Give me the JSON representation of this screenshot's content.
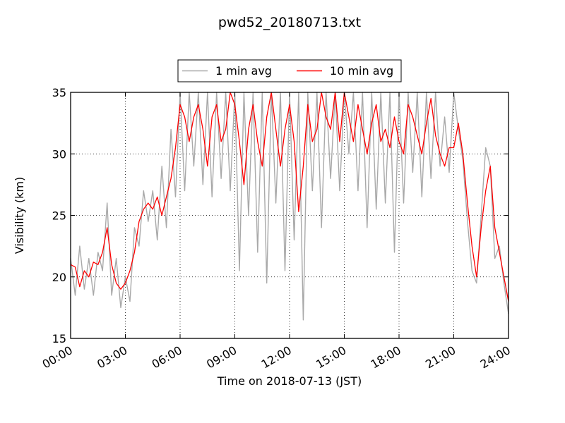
{
  "chart_data": {
    "type": "line",
    "title": "pwd52_20180713.txt",
    "xlabel": "Time on 2018-07-13 (JST)",
    "ylabel": "Visibility (km)",
    "xlim": [
      0,
      24
    ],
    "ylim": [
      15,
      35
    ],
    "x_ticks": [
      0,
      3,
      6,
      9,
      12,
      15,
      18,
      21,
      24
    ],
    "x_tick_labels": [
      "00:00",
      "03:00",
      "06:00",
      "09:00",
      "12:00",
      "15:00",
      "18:00",
      "21:00",
      "24:00"
    ],
    "y_ticks": [
      15,
      20,
      25,
      30,
      35
    ],
    "y_tick_labels": [
      "15",
      "20",
      "25",
      "30",
      "35"
    ],
    "grid": true,
    "legend_position": "top-center",
    "series": [
      {
        "name": "1 min avg",
        "color": "#a9a9a9",
        "x": [
          0,
          0.25,
          0.5,
          0.75,
          1,
          1.25,
          1.5,
          1.75,
          2,
          2.25,
          2.5,
          2.75,
          3,
          3.25,
          3.5,
          3.75,
          4,
          4.25,
          4.5,
          4.75,
          5,
          5.25,
          5.5,
          5.75,
          6,
          6.25,
          6.5,
          6.75,
          7,
          7.25,
          7.5,
          7.75,
          8,
          8.25,
          8.5,
          8.75,
          9,
          9.25,
          9.5,
          9.75,
          10,
          10.25,
          10.5,
          10.75,
          11,
          11.25,
          11.5,
          11.75,
          12,
          12.25,
          12.5,
          12.75,
          13,
          13.25,
          13.5,
          13.75,
          14,
          14.25,
          14.5,
          14.75,
          15,
          15.25,
          15.5,
          15.75,
          16,
          16.25,
          16.5,
          16.75,
          17,
          17.25,
          17.5,
          17.75,
          18,
          18.25,
          18.5,
          18.75,
          19,
          19.25,
          19.5,
          19.75,
          20,
          20.25,
          20.5,
          20.75,
          21,
          21.25,
          21.5,
          21.75,
          22,
          22.25,
          22.5,
          22.75,
          23,
          23.25,
          23.5,
          23.75,
          24
        ],
        "y": [
          21.5,
          18.5,
          22.5,
          19,
          21.5,
          18.5,
          22,
          20.5,
          26,
          18.5,
          21.5,
          17.5,
          20,
          18,
          24,
          22.5,
          27,
          24.5,
          27,
          23,
          29,
          24,
          32,
          26.5,
          35,
          27,
          35,
          29,
          35,
          27.5,
          35,
          26.5,
          35,
          28,
          35,
          27,
          35,
          20.5,
          35,
          25,
          35,
          22,
          35,
          19.5,
          35,
          26,
          35,
          20.5,
          35,
          23,
          35,
          16.5,
          35,
          27,
          35,
          24,
          35,
          28,
          35,
          27,
          35,
          30,
          35,
          27,
          35,
          24,
          35,
          25.5,
          35,
          26,
          35,
          22,
          35,
          26,
          35,
          28.5,
          35,
          26.5,
          35,
          28,
          35,
          29,
          33,
          28.5,
          35,
          32,
          29.5,
          24.5,
          20.5,
          19.5,
          25,
          30.5,
          29,
          21.5,
          22.5,
          19.5,
          17
        ]
      },
      {
        "name": "10 min avg",
        "color": "#ff0000",
        "x": [
          0,
          0.25,
          0.5,
          0.75,
          1,
          1.25,
          1.5,
          1.75,
          2,
          2.25,
          2.5,
          2.75,
          3,
          3.25,
          3.5,
          3.75,
          4,
          4.25,
          4.5,
          4.75,
          5,
          5.25,
          5.5,
          5.75,
          6,
          6.25,
          6.5,
          6.75,
          7,
          7.25,
          7.5,
          7.75,
          8,
          8.25,
          8.5,
          8.75,
          9,
          9.25,
          9.5,
          9.75,
          10,
          10.25,
          10.5,
          10.75,
          11,
          11.25,
          11.5,
          11.75,
          12,
          12.25,
          12.5,
          12.75,
          13,
          13.25,
          13.5,
          13.75,
          14,
          14.25,
          14.5,
          14.75,
          15,
          15.25,
          15.5,
          15.75,
          16,
          16.25,
          16.5,
          16.75,
          17,
          17.25,
          17.5,
          17.75,
          18,
          18.25,
          18.5,
          18.75,
          19,
          19.25,
          19.5,
          19.75,
          20,
          20.25,
          20.5,
          20.75,
          21,
          21.25,
          21.5,
          21.75,
          22,
          22.25,
          22.5,
          22.75,
          23,
          23.25,
          23.5,
          23.75,
          24
        ],
        "y": [
          21,
          20.8,
          19.2,
          20.5,
          20,
          21.2,
          21,
          22,
          24,
          21,
          19.5,
          19,
          19.5,
          20.5,
          22,
          24.5,
          25.5,
          26,
          25.5,
          26.5,
          25,
          26.5,
          28,
          30.5,
          34,
          33,
          31,
          33,
          34,
          32,
          29,
          33,
          34,
          31,
          32,
          35,
          34,
          31,
          27.5,
          32,
          34,
          31,
          29,
          33,
          35,
          32,
          29,
          32,
          34,
          31,
          25.3,
          29,
          34,
          31,
          32,
          35,
          33,
          32,
          35,
          31,
          35,
          33,
          31,
          34,
          32,
          30,
          32.5,
          34,
          31,
          32,
          30.5,
          33,
          31,
          30,
          34,
          33,
          31.5,
          30,
          32.5,
          34.5,
          31.5,
          30,
          29,
          30.5,
          30.5,
          32.5,
          30,
          26,
          22.5,
          20,
          24,
          27,
          29,
          24,
          22,
          20,
          18
        ]
      }
    ]
  }
}
